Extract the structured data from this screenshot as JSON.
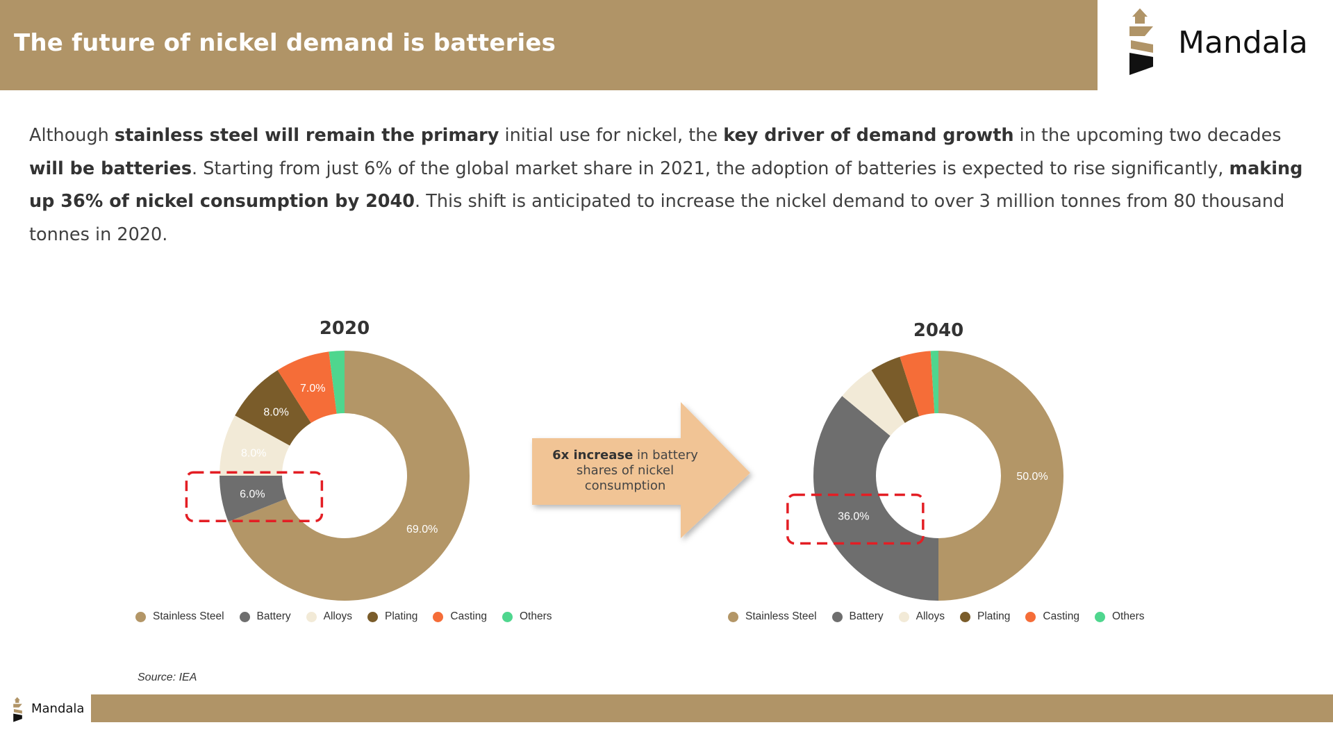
{
  "header": {
    "title": "The future of nickel demand is batteries"
  },
  "brand": {
    "name": "Mandala",
    "icon": "mandala-logo-icon",
    "accent": "#b09467"
  },
  "intro": {
    "parts": [
      "Although ",
      "stainless steel will remain the primary",
      " initial use for nickel, the ",
      "key driver of demand growth",
      " in the upcoming two decades ",
      "will be batteries",
      ". Starting from just 6% of the global market share in 2021, the adoption of batteries is expected to rise significantly, ",
      "making up 36% of nickel consumption by 2040",
      ". This shift is anticipated to increase the nickel demand to over 3 million tonnes from 80 thousand tonnes in 2020."
    ]
  },
  "callout": {
    "bold": "6x increase",
    "rest": " in battery shares of nickel consumption"
  },
  "source": "Source: IEA",
  "colors": {
    "Stainless Steel": "#b39667",
    "Battery": "#6e6e6e",
    "Alloys": "#f2ead7",
    "Plating": "#7a5c2a",
    "Casting": "#f56d38",
    "Others": "#4fd68e"
  },
  "chart_data": [
    {
      "type": "pie",
      "title": "2020",
      "donut": true,
      "legend": "bottom",
      "categories": [
        "Stainless Steel",
        "Battery",
        "Alloys",
        "Plating",
        "Casting",
        "Others"
      ],
      "values": [
        69,
        6,
        8,
        8,
        7,
        2
      ],
      "data_labels": [
        "69.0%",
        "6.0%",
        "8.0%",
        "8.0%",
        "7.0%",
        ""
      ],
      "highlight": "Battery"
    },
    {
      "type": "pie",
      "title": "2040",
      "donut": true,
      "legend": "bottom",
      "categories": [
        "Stainless Steel",
        "Battery",
        "Alloys",
        "Plating",
        "Casting",
        "Others"
      ],
      "values": [
        50,
        36,
        5,
        4,
        4,
        1
      ],
      "data_labels": [
        "50.0%",
        "36.0%",
        "",
        "",
        "",
        ""
      ],
      "highlight": "Battery"
    }
  ]
}
